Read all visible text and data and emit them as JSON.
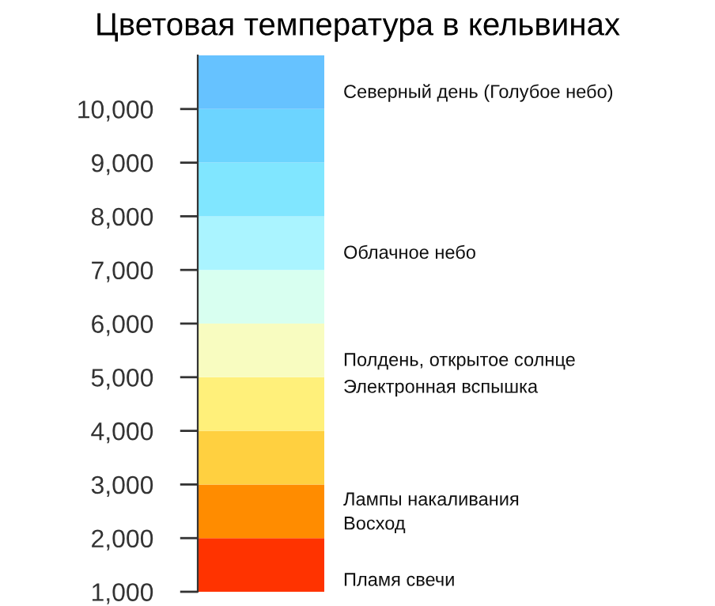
{
  "chart_data": {
    "type": "bar",
    "title": "Цветовая температура в кельвинах",
    "categories": [
      null
    ],
    "stacked": true,
    "tick_labels": "y",
    "series": [
      {
        "color": "#ff3300",
        "values": [
          2000
        ]
      },
      {
        "color": "#ff8c00",
        "values": [
          1000
        ]
      },
      {
        "color": "#ffd040",
        "values": [
          1000
        ]
      },
      {
        "color": "#fff07a",
        "values": [
          1000
        ]
      },
      {
        "color": "#f8fcc0",
        "values": [
          1000
        ]
      },
      {
        "color": "#d8fff0",
        "values": [
          1000
        ]
      },
      {
        "color": "#aaf4ff",
        "values": [
          1000
        ]
      },
      {
        "color": "#80e6ff",
        "values": [
          1000
        ]
      },
      {
        "color": "#6cd4ff",
        "values": [
          1000
        ]
      },
      {
        "color": "#66c2ff",
        "values": [
          1000
        ]
      }
    ],
    "ylim": [
      1000,
      11000
    ],
    "yticks": [
      {
        "value": 1000,
        "label": "1,000"
      },
      {
        "value": 2000,
        "label": "2,000"
      },
      {
        "value": 3000,
        "label": "3,000"
      },
      {
        "value": 4000,
        "label": "4,000"
      },
      {
        "value": 5000,
        "label": "5,000"
      },
      {
        "value": 6000,
        "label": "6,000"
      },
      {
        "value": 7000,
        "label": "7,000"
      },
      {
        "value": 8000,
        "label": "8,000"
      },
      {
        "value": 9000,
        "label": "9,000"
      },
      {
        "value": 10000,
        "label": "10,000"
      }
    ],
    "annotations": [
      "Северный день (Голубое небо)",
      "Облачное небо",
      "Полдень, открытое солнце",
      "Электронная вспышка",
      "Лампы накаливания",
      "Восход",
      "Пламя свечи"
    ]
  }
}
